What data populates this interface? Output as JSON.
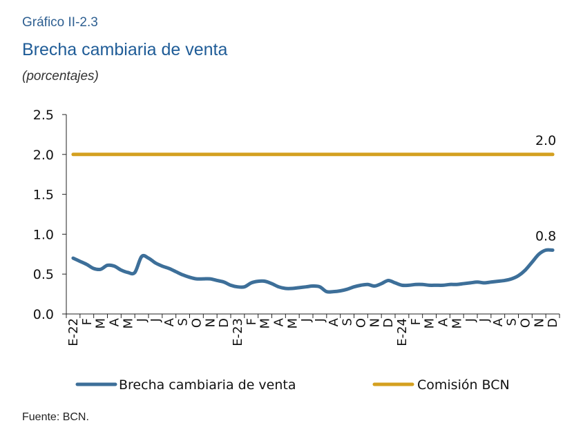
{
  "header": {
    "caption": "Gráfico II-2.3",
    "title": "Brecha cambiaria de venta",
    "subtitle": "(porcentajes)"
  },
  "footer": {
    "source": "Fuente: BCN."
  },
  "colors": {
    "brecha": "#3d6f99",
    "comision": "#d4a020",
    "axis": "#222222"
  },
  "chart_data": {
    "type": "line",
    "categories": [
      "E-22",
      "F",
      "M",
      "A",
      "M",
      "J",
      "J",
      "A",
      "S",
      "O",
      "N",
      "D",
      "E-23",
      "F",
      "M",
      "A",
      "M",
      "J",
      "J",
      "A",
      "S",
      "O",
      "N",
      "D",
      "E-24",
      "F",
      "M",
      "A",
      "M",
      "J",
      "J",
      "A",
      "S",
      "O",
      "N",
      "D"
    ],
    "ylim": [
      0,
      2.5
    ],
    "yticks": [
      "0.0",
      "0.5",
      "1.0",
      "1.5",
      "2.0",
      "2.5"
    ],
    "grid": false,
    "legend_position": "bottom",
    "series": [
      {
        "name": "Brecha cambiaria de venta",
        "color": "#3d6f99",
        "x": [
          0,
          0.5,
          1,
          1.5,
          2,
          2.5,
          3,
          3.5,
          4,
          4.5,
          5,
          5.5,
          6,
          6.5,
          7,
          7.5,
          8,
          8.5,
          9,
          9.5,
          10,
          10.5,
          11,
          11.5,
          12,
          12.5,
          13,
          13.5,
          14,
          14.5,
          15,
          15.5,
          16,
          16.5,
          17,
          17.5,
          18,
          18.5,
          19,
          19.5,
          20,
          20.5,
          21,
          21.5,
          22,
          22.5,
          23,
          23.5,
          24,
          24.5,
          25,
          25.5,
          26,
          26.5,
          27,
          27.5,
          28,
          28.5,
          29,
          29.5,
          30,
          30.5,
          31,
          31.5,
          32,
          32.5,
          33,
          33.5,
          34,
          34.5,
          35
        ],
        "values": [
          0.7,
          0.66,
          0.62,
          0.57,
          0.56,
          0.61,
          0.6,
          0.55,
          0.52,
          0.52,
          0.72,
          0.7,
          0.64,
          0.6,
          0.57,
          0.53,
          0.49,
          0.46,
          0.44,
          0.44,
          0.44,
          0.42,
          0.4,
          0.36,
          0.34,
          0.34,
          0.39,
          0.41,
          0.41,
          0.38,
          0.34,
          0.32,
          0.32,
          0.33,
          0.34,
          0.35,
          0.34,
          0.28,
          0.28,
          0.29,
          0.31,
          0.34,
          0.36,
          0.37,
          0.35,
          0.38,
          0.42,
          0.39,
          0.36,
          0.36,
          0.37,
          0.37,
          0.36,
          0.36,
          0.36,
          0.37,
          0.37,
          0.38,
          0.39,
          0.4,
          0.39,
          0.4,
          0.41,
          0.42,
          0.44,
          0.48,
          0.55,
          0.65,
          0.75,
          0.8,
          0.8
        ],
        "end_label": "0.8"
      },
      {
        "name": "Comisión BCN",
        "color": "#d4a020",
        "x": [
          0,
          35
        ],
        "values": [
          2.0,
          2.0
        ],
        "end_label": "2.0"
      }
    ]
  }
}
